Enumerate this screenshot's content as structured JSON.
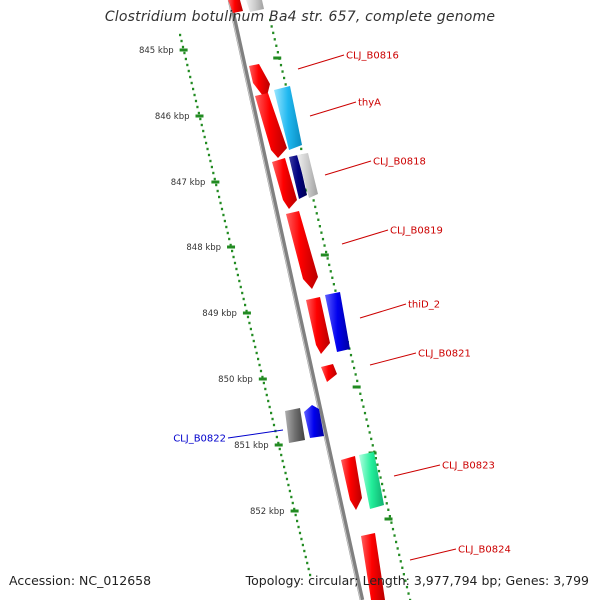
{
  "title": "Clostridium botulinum Ba4 str. 657, complete genome",
  "footer": {
    "accession": "Accession: NC_012658",
    "summary": "Topology: circular; Length: 3,977,794 bp; Genes: 3,799"
  },
  "ruler": {
    "ticks": [
      "845 kbp",
      "846 kbp",
      "847 kbp",
      "848 kbp",
      "849 kbp",
      "850 kbp",
      "851 kbp",
      "852 kbp"
    ]
  },
  "colors": {
    "backbone": "#808080",
    "ruler_dots": "#228b22",
    "label_red": "#cc0000",
    "label_blue": "#0000cc"
  },
  "genes": [
    {
      "label": "CLJ_B0816",
      "color": "#cc0000"
    },
    {
      "label": "thyA",
      "color": "#cc0000"
    },
    {
      "label": "CLJ_B0818",
      "color": "#cc0000"
    },
    {
      "label": "CLJ_B0819",
      "color": "#cc0000"
    },
    {
      "label": "thiD_2",
      "color": "#cc0000"
    },
    {
      "label": "CLJ_B0821",
      "color": "#cc0000"
    },
    {
      "label": "CLJ_B0822",
      "color": "#0000cc"
    },
    {
      "label": "CLJ_B0823",
      "color": "#cc0000"
    },
    {
      "label": "CLJ_B0824",
      "color": "#cc0000"
    }
  ]
}
